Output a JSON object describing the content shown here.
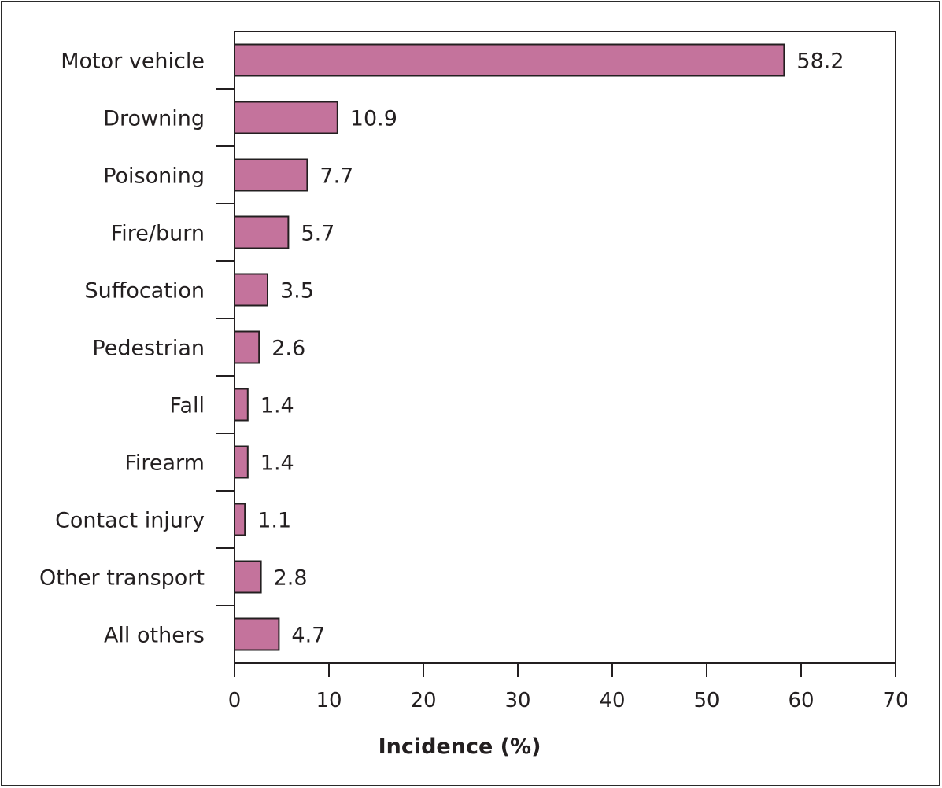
{
  "chart_data": {
    "type": "bar",
    "orientation": "horizontal",
    "categories": [
      "Motor vehicle",
      "Drowning",
      "Poisoning",
      "Fire/burn",
      "Suffocation",
      "Pedestrian",
      "Fall",
      "Firearm",
      "Contact injury",
      "Other transport",
      "All others"
    ],
    "values": [
      58.2,
      10.9,
      7.7,
      5.7,
      3.5,
      2.6,
      1.4,
      1.4,
      1.1,
      2.8,
      4.7
    ],
    "value_labels": [
      "58.2",
      "10.9",
      "7.7",
      "5.7",
      "3.5",
      "2.6",
      "1.4",
      "1.4",
      "1.1",
      "2.8",
      "4.7"
    ],
    "xlabel": "Incidence (%)",
    "ylabel": "",
    "title": "",
    "xlim": [
      0,
      70
    ],
    "x_ticks": [
      0,
      10,
      20,
      30,
      40,
      50,
      60,
      70
    ],
    "grid": false,
    "legend": "none",
    "colors": {
      "bar_fill": "#c4739c",
      "bar_stroke": "#231f20",
      "axis": "#231f20",
      "text": "#231f20"
    }
  }
}
